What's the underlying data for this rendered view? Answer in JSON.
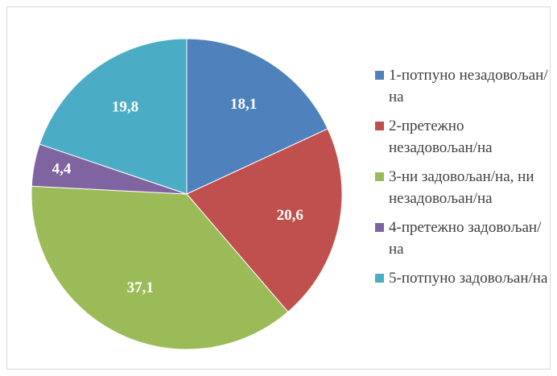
{
  "chart_data": {
    "type": "pie",
    "categories": [
      "1-потпуно незадовољан/на",
      "2-претежно незадовољан/на",
      "3-ни задовољан/на, ни незадовољан/на",
      "4-претежно задовољан/на",
      "5-потпуно задовољан/на"
    ],
    "values": [
      18.1,
      20.6,
      37.1,
      4.4,
      19.8
    ],
    "value_labels": [
      "18,1",
      "20,6",
      "37,1",
      "4,4",
      "19,8"
    ],
    "colors": [
      "#4f81bd",
      "#c0504d",
      "#9bbb59",
      "#8064a2",
      "#4bacc6"
    ],
    "legend": "right"
  }
}
